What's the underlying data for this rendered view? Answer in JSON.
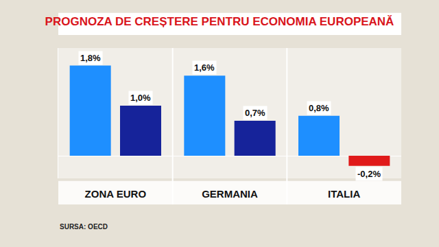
{
  "chart_data": {
    "type": "bar",
    "title": "PROGNOZA DE CREȘTERE PENTRU ECONOMIA EUROPEANĂ",
    "source": "SURSA: OECD",
    "categories": [
      "ZONA EURO",
      "GERMANIA",
      "ITALIA"
    ],
    "series": [
      {
        "color": "#1e8fff",
        "values": [
          1.8,
          1.6,
          0.8
        ],
        "value_labels": [
          "1,8%",
          "1,6%",
          "0,8%"
        ]
      },
      {
        "colors": [
          "#16239a",
          "#16239a",
          "#e01a1a"
        ],
        "values": [
          1.0,
          0.7,
          -0.2
        ],
        "value_labels": [
          "1,0%",
          "0,7%",
          "-0,2%"
        ]
      }
    ],
    "ylim": [
      -0.45,
      2.15
    ],
    "yticks": [
      0
    ],
    "grid": false,
    "data_labels": true,
    "tick_labels": "x"
  }
}
